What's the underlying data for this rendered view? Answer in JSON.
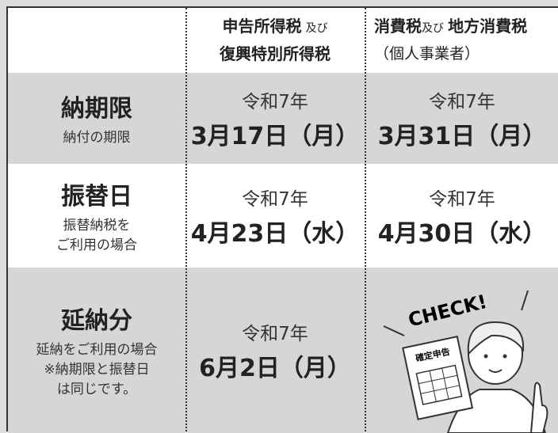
{
  "header": {
    "income_tax": {
      "name": "申告所得税",
      "conj": "及び",
      "name2": "復興特別所得税"
    },
    "consumption_tax": {
      "name": "消費税",
      "conj": "及び",
      "name2": "地方消費税",
      "note": "（個人事業者）"
    }
  },
  "rows": [
    {
      "title": "納期限",
      "notes": [
        "納付の期限"
      ],
      "income_tax": {
        "era": "令和7年",
        "date": "3月17日（月）"
      },
      "consumption_tax": {
        "era": "令和7年",
        "date": "3月31日（月）"
      }
    },
    {
      "title": "振替日",
      "notes": [
        "振替納税を",
        "ご利用の場合"
      ],
      "income_tax": {
        "era": "令和7年",
        "date": "4月23日（水）"
      },
      "consumption_tax": {
        "era": "令和7年",
        "date": "4月30日（水）"
      }
    },
    {
      "title": "延納分",
      "notes": [
        "延納をご利用の場合",
        "※納期限と振替日",
        "は同じです。"
      ],
      "income_tax": {
        "era": "令和7年",
        "date": "6月2日（月）"
      }
    }
  ],
  "illustration": {
    "shout": "CHECK!",
    "paper": "確定申告"
  }
}
